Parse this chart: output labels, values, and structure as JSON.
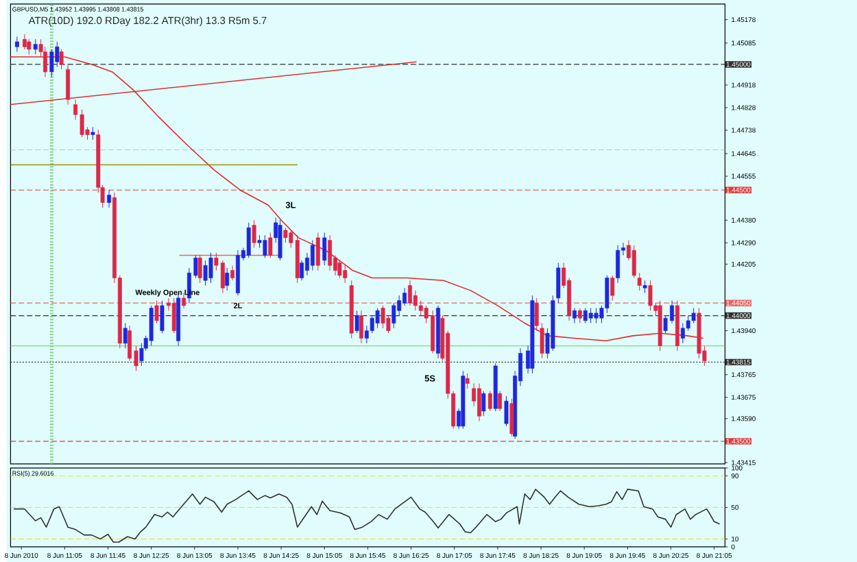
{
  "chart_data": [
    {
      "type": "candlestick",
      "title": "GBPUSD,M5 1.43952 1.43995 1.43808 1.43815",
      "subtitle": "ATR(10D) 192.0 RDay 182.2 ATR(3hr) 13.3 R5m 5.7",
      "xlim": [
        "2010-06-08T10:15",
        "2010-06-08T21:15"
      ],
      "ylim": [
        1.4341,
        1.4524
      ],
      "tick_labels": "y",
      "yticks": [
        1.45178,
        1.45085,
        1.44918,
        1.44828,
        1.44738,
        1.44645,
        1.44555,
        {
          "value": 1.4438,
          "label": "1.44380"
        },
        {
          "value": 1.4429,
          "label": "1.44290"
        },
        1.44205,
        {
          "value": 1.4394,
          "label": "1.43940"
        },
        1.43765,
        1.43675,
        {
          "value": 1.4359,
          "label": "1.43590"
        },
        1.43415
      ],
      "series": [
        {
          "type": "line",
          "color": "#e62828",
          "x": [
            "2010-06-08T10:15",
            "2010-06-08T11:05",
            "2010-06-08T11:30",
            "2010-06-08T11:49",
            "2010-06-08T12:08",
            "2010-06-08T12:32",
            "2010-06-08T12:58",
            "2010-06-08T13:23",
            "2010-06-08T13:47",
            "2010-06-08T14:13",
            "2010-06-08T14:25",
            "2010-06-08T14:41",
            "2010-06-08T15:06",
            "2010-06-08T15:31",
            "2010-06-08T15:49",
            "2010-06-08T16:21",
            "2010-06-08T16:55",
            "2010-06-08T17:20",
            "2010-06-08T17:45",
            "2010-06-08T18:10",
            "2010-06-08T18:31",
            "2010-06-08T18:56",
            "2010-06-08T19:25",
            "2010-06-08T19:50",
            "2010-06-08T20:15",
            "2010-06-08T20:40",
            "2010-06-08T20:55"
          ],
          "values": [
            1.4503,
            1.4503,
            1.45,
            1.4497,
            1.449,
            1.4479,
            1.4468,
            1.4458,
            1.445,
            1.4444,
            1.4438,
            1.4431,
            1.4426,
            1.4418,
            1.4415,
            1.4415,
            1.4414,
            1.441,
            1.4404,
            1.4397,
            1.4392,
            1.4391,
            1.439,
            1.4392,
            1.4393,
            1.4392,
            1.4391
          ]
        },
        {
          "type": "line",
          "color": "#e03030",
          "x": [
            "2010-06-08T10:15",
            "2010-06-08T16:30"
          ],
          "values": [
            1.4484,
            1.4501
          ]
        },
        {
          "type": "line",
          "color": "#a09000",
          "x": [
            "2010-06-08T10:15",
            "2010-06-08T14:40"
          ],
          "values": [
            1.446,
            1.446
          ]
        },
        {
          "type": "line",
          "color": "#f06060",
          "x": [
            "2010-06-08T12:51",
            "2010-06-08T14:25"
          ],
          "values": [
            1.4424,
            1.4424
          ]
        },
        {
          "color": "#1e28dc",
          "x": [
            "2010-06-08T10:21",
            "2010-06-08T10:38",
            "2010-06-08T10:53",
            "2010-06-08T10:58",
            "2010-06-08T11:31",
            "2010-06-08T11:46",
            "2010-06-08T12:01",
            "2010-06-08T12:16",
            "2010-06-08T12:20",
            "2010-06-08T12:25",
            "2010-06-08T12:35",
            "2010-06-08T12:50",
            "2010-06-08T13:00",
            "2010-06-08T13:06",
            "2010-06-08T13:15",
            "2010-06-08T13:20",
            "2010-06-08T13:35",
            "2010-06-08T13:45",
            "2010-06-08T13:50",
            "2010-06-08T13:55",
            "2010-06-08T14:05",
            "2010-06-08T14:10",
            "2010-06-08T14:20",
            "2010-06-08T14:24",
            "2010-06-08T14:44",
            "2010-06-08T14:49",
            "2010-06-08T14:54",
            "2010-06-08T15:05",
            "2010-06-08T15:35",
            "2010-06-08T15:44",
            "2010-06-08T15:49",
            "2010-06-08T15:54",
            "2010-06-08T16:09",
            "2010-06-08T16:14",
            "2010-06-08T16:19",
            "2010-06-08T16:50",
            "2010-06-08T17:09",
            "2010-06-08T17:13",
            "2010-06-08T17:32",
            "2010-06-08T17:43",
            "2010-06-08T17:53",
            "2010-06-08T18:01",
            "2010-06-08T18:06",
            "2010-06-08T18:13",
            "2010-06-08T18:17",
            "2010-06-08T18:31",
            "2010-06-08T18:36",
            "2010-06-08T18:41",
            "2010-06-08T18:56",
            "2010-06-08T19:06",
            "2010-06-08T19:11",
            "2010-06-08T19:16",
            "2010-06-08T19:21",
            "2010-06-08T19:26",
            "2010-06-08T19:36",
            "2010-06-08T19:41",
            "2010-06-08T20:01",
            "2010-06-08T20:20",
            "2010-06-08T20:26",
            "2010-06-08T20:36",
            "2010-06-08T20:41",
            "2010-06-08T20:46"
          ],
          "ohlc": [
            [
              1.4507,
              1.4511,
              1.4505,
              1.4509
            ],
            [
              1.4506,
              1.451,
              1.4504,
              1.4508
            ],
            [
              1.4497,
              1.4506,
              1.4495,
              1.4505
            ],
            [
              1.4501,
              1.4509,
              1.4499,
              1.4507
            ],
            [
              1.4472,
              1.4475,
              1.447,
              1.4473
            ],
            [
              1.4445,
              1.445,
              1.4443,
              1.4448
            ],
            [
              1.4389,
              1.4397,
              1.4387,
              1.4395
            ],
            [
              1.4382,
              1.4389,
              1.438,
              1.4387
            ],
            [
              1.4387,
              1.4392,
              1.4386,
              1.4391
            ],
            [
              1.439,
              1.4404,
              1.4388,
              1.4403
            ],
            [
              1.4394,
              1.4406,
              1.4393,
              1.4404
            ],
            [
              1.439,
              1.4409,
              1.4388,
              1.4407
            ],
            [
              1.4407,
              1.4419,
              1.4405,
              1.4417
            ],
            [
              1.4416,
              1.4424,
              1.4415,
              1.4423
            ],
            [
              1.4414,
              1.4422,
              1.4412,
              1.442
            ],
            [
              1.4415,
              1.4425,
              1.4413,
              1.4423
            ],
            [
              1.4412,
              1.4419,
              1.441,
              1.4417
            ],
            [
              1.4409,
              1.4426,
              1.4408,
              1.4424
            ],
            [
              1.4423,
              1.4427,
              1.4422,
              1.4426
            ],
            [
              1.4424,
              1.4437,
              1.4423,
              1.4435
            ],
            [
              1.4429,
              1.4432,
              1.4427,
              1.443
            ],
            [
              1.4424,
              1.4432,
              1.4423,
              1.443
            ],
            [
              1.4431,
              1.4439,
              1.4429,
              1.4437
            ],
            [
              1.4423,
              1.4438,
              1.4422,
              1.4436
            ],
            [
              1.4415,
              1.4422,
              1.4414,
              1.4421
            ],
            [
              1.4418,
              1.4425,
              1.4416,
              1.4423
            ],
            [
              1.442,
              1.443,
              1.4418,
              1.4428
            ],
            [
              1.4422,
              1.4433,
              1.442,
              1.4431
            ],
            [
              1.4394,
              1.4402,
              1.4393,
              1.44
            ],
            [
              1.4391,
              1.4396,
              1.4389,
              1.4394
            ],
            [
              1.4394,
              1.44,
              1.4393,
              1.4399
            ],
            [
              1.4397,
              1.4403,
              1.4395,
              1.4402
            ],
            [
              1.4397,
              1.4405,
              1.4395,
              1.4404
            ],
            [
              1.4402,
              1.4408,
              1.44,
              1.4406
            ],
            [
              1.4405,
              1.4411,
              1.4404,
              1.4409
            ],
            [
              1.4385,
              1.4404,
              1.4383,
              1.4403
            ],
            [
              1.4356,
              1.4363,
              1.4355,
              1.4362
            ],
            [
              1.4356,
              1.4378,
              1.4355,
              1.4376
            ],
            [
              1.4362,
              1.437,
              1.436,
              1.4369
            ],
            [
              1.4363,
              1.4381,
              1.4362,
              1.438
            ],
            [
              1.4357,
              1.4368,
              1.4356,
              1.4366
            ],
            [
              1.4352,
              1.4378,
              1.4351,
              1.4376
            ],
            [
              1.4374,
              1.4387,
              1.4372,
              1.4385
            ],
            [
              1.4379,
              1.4388,
              1.4377,
              1.4386
            ],
            [
              1.4379,
              1.4408,
              1.4377,
              1.4406
            ],
            [
              1.4385,
              1.4395,
              1.4383,
              1.4393
            ],
            [
              1.4387,
              1.4408,
              1.4386,
              1.4406
            ],
            [
              1.4407,
              1.4421,
              1.4405,
              1.4419
            ],
            [
              1.4399,
              1.4403,
              1.4397,
              1.4402
            ],
            [
              1.4398,
              1.4403,
              1.4397,
              1.4402
            ],
            [
              1.4399,
              1.4403,
              1.4397,
              1.4401
            ],
            [
              1.4399,
              1.4403,
              1.4397,
              1.4401
            ],
            [
              1.4399,
              1.4404,
              1.4397,
              1.4403
            ],
            [
              1.4403,
              1.4416,
              1.4401,
              1.4415
            ],
            [
              1.4415,
              1.4428,
              1.4413,
              1.4426
            ],
            [
              1.4426,
              1.4429,
              1.4424,
              1.4427
            ],
            [
              1.4411,
              1.4414,
              1.4409,
              1.4412
            ],
            [
              1.4394,
              1.44,
              1.4393,
              1.4399
            ],
            [
              1.4398,
              1.4406,
              1.4397,
              1.4404
            ],
            [
              1.4391,
              1.4397,
              1.4389,
              1.4395
            ],
            [
              1.4395,
              1.44,
              1.4394,
              1.4398
            ],
            [
              1.4398,
              1.4403,
              1.4397,
              1.4401
            ]
          ]
        },
        {
          "color": "#dc2848",
          "x": [
            "2010-06-08T10:28",
            "2010-06-08T10:32",
            "2010-06-08T10:43",
            "2010-06-08T10:47",
            "2010-06-08T11:02",
            "2010-06-08T11:08",
            "2010-06-08T11:15",
            "2010-06-08T11:21",
            "2010-06-08T11:26",
            "2010-06-08T11:36",
            "2010-06-08T11:40",
            "2010-06-08T11:51",
            "2010-06-08T11:56",
            "2010-06-08T12:05",
            "2010-06-08T12:11",
            "2010-06-08T12:30",
            "2010-06-08T12:41",
            "2010-06-08T12:46",
            "2010-06-08T12:55",
            "2010-06-08T13:10",
            "2010-06-08T13:25",
            "2010-06-08T13:31",
            "2010-06-08T13:40",
            "2010-06-08T14:00",
            "2010-06-08T14:15",
            "2010-06-08T14:29",
            "2010-06-08T14:34",
            "2010-06-08T14:40",
            "2010-06-08T14:59",
            "2010-06-08T15:10",
            "2010-06-08T15:15",
            "2010-06-08T15:19",
            "2010-06-08T15:24",
            "2010-06-08T15:30",
            "2010-06-08T15:39",
            "2010-06-08T15:59",
            "2010-06-08T16:04",
            "2010-06-08T16:24",
            "2010-06-08T16:29",
            "2010-06-08T16:34",
            "2010-06-08T16:39",
            "2010-06-08T16:45",
            "2010-06-08T16:54",
            "2010-06-08T16:59",
            "2010-06-08T17:04",
            "2010-06-08T17:17",
            "2010-06-08T17:23",
            "2010-06-08T17:28",
            "2010-06-08T17:38",
            "2010-06-08T17:47",
            "2010-06-08T17:58",
            "2010-06-08T18:21",
            "2010-06-08T18:26",
            "2010-06-08T18:46",
            "2010-06-08T18:51",
            "2010-06-08T19:01",
            "2010-06-08T19:31",
            "2010-06-08T19:46",
            "2010-06-08T19:51",
            "2010-06-08T19:56",
            "2010-06-08T20:06",
            "2010-06-08T20:11",
            "2010-06-08T20:15",
            "2010-06-08T20:31",
            "2010-06-08T20:51",
            "2010-06-08T20:56"
          ],
          "ohlc": [
            [
              1.451,
              1.4512,
              1.4506,
              1.4507
            ],
            [
              1.4509,
              1.451,
              1.4504,
              1.4506
            ],
            [
              1.4508,
              1.451,
              1.4503,
              1.4505
            ],
            [
              1.4505,
              1.4507,
              1.4495,
              1.4497
            ],
            [
              1.4505,
              1.4506,
              1.4498,
              1.45
            ],
            [
              1.4498,
              1.45,
              1.4484,
              1.4486
            ],
            [
              1.4484,
              1.4486,
              1.4478,
              1.448
            ],
            [
              1.448,
              1.4482,
              1.4471,
              1.4472
            ],
            [
              1.4474,
              1.4475,
              1.447,
              1.4472
            ],
            [
              1.4472,
              1.4474,
              1.4449,
              1.4451
            ],
            [
              1.4451,
              1.4452,
              1.4443,
              1.4445
            ],
            [
              1.4447,
              1.4449,
              1.4413,
              1.4415
            ],
            [
              1.4415,
              1.4416,
              1.4387,
              1.4389
            ],
            [
              1.4394,
              1.4396,
              1.4382,
              1.4383
            ],
            [
              1.4386,
              1.4388,
              1.4378,
              1.438
            ],
            [
              1.4404,
              1.4406,
              1.4397,
              1.4398
            ],
            [
              1.4405,
              1.4407,
              1.4402,
              1.4404
            ],
            [
              1.4405,
              1.4407,
              1.4393,
              1.4394
            ],
            [
              1.4407,
              1.4409,
              1.4403,
              1.4404
            ],
            [
              1.4423,
              1.4424,
              1.4413,
              1.4415
            ],
            [
              1.4423,
              1.4425,
              1.4418,
              1.442
            ],
            [
              1.4421,
              1.4422,
              1.4409,
              1.4411
            ],
            [
              1.4418,
              1.442,
              1.4414,
              1.4415
            ],
            [
              1.4436,
              1.4438,
              1.4427,
              1.4429
            ],
            [
              1.4431,
              1.4433,
              1.4423,
              1.4424
            ],
            [
              1.4434,
              1.4435,
              1.4429,
              1.4431
            ],
            [
              1.4433,
              1.4434,
              1.4427,
              1.4429
            ],
            [
              1.443,
              1.4432,
              1.4413,
              1.4415
            ],
            [
              1.4431,
              1.4433,
              1.4418,
              1.442
            ],
            [
              1.443,
              1.4432,
              1.4418,
              1.442
            ],
            [
              1.4423,
              1.4424,
              1.4416,
              1.4418
            ],
            [
              1.4421,
              1.4422,
              1.4415,
              1.4416
            ],
            [
              1.4418,
              1.442,
              1.4413,
              1.4415
            ],
            [
              1.4412,
              1.4414,
              1.4391,
              1.4393
            ],
            [
              1.44,
              1.4402,
              1.4389,
              1.4391
            ],
            [
              1.4403,
              1.4404,
              1.4395,
              1.4397
            ],
            [
              1.4399,
              1.44,
              1.4393,
              1.4394
            ],
            [
              1.4412,
              1.4414,
              1.4404,
              1.4405
            ],
            [
              1.4408,
              1.441,
              1.4402,
              1.4404
            ],
            [
              1.4404,
              1.4406,
              1.44,
              1.4402
            ],
            [
              1.4403,
              1.4404,
              1.4397,
              1.4399
            ],
            [
              1.44,
              1.4402,
              1.4385,
              1.4386
            ],
            [
              1.4399,
              1.44,
              1.4382,
              1.4383
            ],
            [
              1.4393,
              1.4394,
              1.4367,
              1.4369
            ],
            [
              1.4369,
              1.437,
              1.4355,
              1.4356
            ],
            [
              1.4375,
              1.4377,
              1.4371,
              1.4373
            ],
            [
              1.4371,
              1.4373,
              1.4364,
              1.4366
            ],
            [
              1.4371,
              1.4373,
              1.4358,
              1.436
            ],
            [
              1.4369,
              1.437,
              1.4362,
              1.4363
            ],
            [
              1.4369,
              1.437,
              1.4362,
              1.4363
            ],
            [
              1.4365,
              1.4367,
              1.4352,
              1.4353
            ],
            [
              1.4405,
              1.4407,
              1.4394,
              1.4396
            ],
            [
              1.4395,
              1.4397,
              1.4383,
              1.4385
            ],
            [
              1.4419,
              1.4421,
              1.4411,
              1.4412
            ],
            [
              1.4414,
              1.4415,
              1.4398,
              1.44
            ],
            [
              1.4402,
              1.4403,
              1.4397,
              1.4399
            ],
            [
              1.4415,
              1.4416,
              1.4406,
              1.4408
            ],
            [
              1.4428,
              1.443,
              1.4422,
              1.4423
            ],
            [
              1.4426,
              1.4428,
              1.4415,
              1.4416
            ],
            [
              1.4415,
              1.4417,
              1.441,
              1.4412
            ],
            [
              1.4412,
              1.4414,
              1.4402,
              1.4404
            ],
            [
              1.4404,
              1.4405,
              1.44,
              1.4402
            ],
            [
              1.4404,
              1.4406,
              1.4386,
              1.4388
            ],
            [
              1.4404,
              1.4406,
              1.4386,
              1.4388
            ],
            [
              1.4401,
              1.4403,
              1.4383,
              1.4385
            ],
            [
              1.4386,
              1.4388,
              1.438,
              1.4382
            ]
          ]
        }
      ],
      "ref_lines": [
        {
          "axis": "y",
          "value": 1.45,
          "label": "1.45000",
          "color": "#303030",
          "line_style": "dashed"
        },
        {
          "axis": "y",
          "value": 1.4466,
          "color": "#b4d2dc",
          "line_style": "dashed"
        },
        {
          "axis": "y",
          "value": 1.445,
          "label": "1.44500",
          "color": "#e03c3c",
          "line_style": "dashed"
        },
        {
          "axis": "y",
          "value": 1.4405,
          "label": "1.44050",
          "color": "#e86464",
          "line_style": "dashed"
        },
        {
          "axis": "y",
          "value": 1.44,
          "label": "1.44000",
          "color": "#303030",
          "line_style": "dashed"
        },
        {
          "axis": "y",
          "value": 1.4388,
          "color": "#78dc78",
          "line_style": "solid"
        },
        {
          "axis": "y",
          "value": 1.43815,
          "label": "1.43815",
          "color": "#303030",
          "line_style": "dotted"
        },
        {
          "axis": "y",
          "value": 1.435,
          "label": "1.43500",
          "color": "#e03c3c",
          "line_style": "dashed"
        },
        {
          "axis": "x",
          "value": "2010-06-08T10:53",
          "color": "#8cd08c",
          "line_style": "dotted"
        }
      ],
      "annotations": [
        "3L",
        {
          "text": "2L",
          "x": "2010-06-08T13:45",
          "y": 1.4404
        },
        "5S",
        {
          "text": "Weekly Open Line",
          "x": "2010-06-08T12:40",
          "y": 1.4409
        }
      ]
    },
    {
      "type": "line",
      "title": "RSI(5) 29.6016",
      "color": "#303030",
      "xlim": [
        "2010-06-08T10:15",
        "2010-06-08T21:15"
      ],
      "ylim": [
        0,
        100
      ],
      "yticks": [
        0,
        10,
        50,
        90,
        100
      ],
      "xticks": [
        {
          "value": "2010-06-08T10:25",
          "label": "8 Jun 2010"
        },
        {
          "value": "2010-06-08T11:05",
          "label": "8 Jun 11:05"
        },
        {
          "value": "2010-06-08T11:45",
          "label": "8 Jun 11:45"
        },
        {
          "value": "2010-06-08T12:25",
          "label": "8 Jun 12:25"
        },
        {
          "value": "2010-06-08T13:05",
          "label": "8 Jun 13:05"
        },
        {
          "value": "2010-06-08T13:45",
          "label": "8 Jun 13:45"
        },
        {
          "value": "2010-06-08T14:25",
          "label": "8 Jun 14:25"
        },
        {
          "value": "2010-06-08T15:05",
          "label": "8 Jun 15:05"
        },
        {
          "value": "2010-06-08T15:45",
          "label": "8 Jun 15:45"
        },
        {
          "value": "2010-06-08T16:25",
          "label": "8 Jun 16:25"
        },
        {
          "value": "2010-06-08T17:05",
          "label": "8 Jun 17:05"
        },
        {
          "value": "2010-06-08T17:45",
          "label": "8 Jun 17:45"
        },
        {
          "value": "2010-06-08T18:25",
          "label": "8 Jun 18:25"
        },
        {
          "value": "2010-06-08T19:05",
          "label": "8 Jun 19:05"
        },
        {
          "value": "2010-06-08T19:45",
          "label": "8 Jun 19:45"
        },
        {
          "value": "2010-06-08T20:25",
          "label": "8 Jun 20:25"
        },
        {
          "value": "2010-06-08T21:05",
          "label": "8 Jun 21:05"
        }
      ],
      "x": [
        "2010-06-08T10:18",
        "2010-06-08T10:28",
        "2010-06-08T10:38",
        "2010-06-08T10:43",
        "2010-06-08T10:48",
        "2010-06-08T10:55",
        "2010-06-08T11:00",
        "2010-06-08T11:08",
        "2010-06-08T11:15",
        "2010-06-08T11:23",
        "2010-06-08T11:30",
        "2010-06-08T11:38",
        "2010-06-08T11:45",
        "2010-06-08T11:50",
        "2010-06-08T11:55",
        "2010-06-08T12:03",
        "2010-06-08T12:10",
        "2010-06-08T12:15",
        "2010-06-08T12:20",
        "2010-06-08T12:28",
        "2010-06-08T12:35",
        "2010-06-08T12:40",
        "2010-06-08T12:45",
        "2010-06-08T12:53",
        "2010-06-08T13:03",
        "2010-06-08T13:10",
        "2010-06-08T13:15",
        "2010-06-08T13:23",
        "2010-06-08T13:30",
        "2010-06-08T13:35",
        "2010-06-08T13:43",
        "2010-06-08T13:55",
        "2010-06-08T14:03",
        "2010-06-08T14:10",
        "2010-06-08T14:15",
        "2010-06-08T14:23",
        "2010-06-08T14:30",
        "2010-06-08T14:35",
        "2010-06-08T14:40",
        "2010-06-08T14:48",
        "2010-06-08T14:53",
        "2010-06-08T14:58",
        "2010-06-08T15:03",
        "2010-06-08T15:10",
        "2010-06-08T15:20",
        "2010-06-08T15:28",
        "2010-06-08T15:33",
        "2010-06-08T15:40",
        "2010-06-08T15:48",
        "2010-06-08T15:55",
        "2010-06-08T16:03",
        "2010-06-08T16:10",
        "2010-06-08T16:25",
        "2010-06-08T16:33",
        "2010-06-08T16:38",
        "2010-06-08T16:45",
        "2010-06-08T16:50",
        "2010-06-08T17:00",
        "2010-06-08T17:10",
        "2010-06-08T17:15",
        "2010-06-08T17:20",
        "2010-06-08T17:25",
        "2010-06-08T17:35",
        "2010-06-08T17:43",
        "2010-06-08T17:48",
        "2010-06-08T17:53",
        "2010-06-08T18:03",
        "2010-06-08T18:05",
        "2010-06-08T18:10",
        "2010-06-08T18:15",
        "2010-06-08T18:20",
        "2010-06-08T18:28",
        "2010-06-08T18:33",
        "2010-06-08T18:38",
        "2010-06-08T18:43",
        "2010-06-08T18:50",
        "2010-06-08T19:00",
        "2010-06-08T19:10",
        "2010-06-08T19:18",
        "2010-06-08T19:25",
        "2010-06-08T19:30",
        "2010-06-08T19:35",
        "2010-06-08T19:40",
        "2010-06-08T19:45",
        "2010-06-08T19:55",
        "2010-06-08T20:00",
        "2010-06-08T20:08",
        "2010-06-08T20:13",
        "2010-06-08T20:20",
        "2010-06-08T20:25",
        "2010-06-08T20:30",
        "2010-06-08T20:38",
        "2010-06-08T20:43",
        "2010-06-08T20:48",
        "2010-06-08T20:58",
        "2010-06-08T21:00",
        "2010-06-08T21:05",
        "2010-06-08T21:10"
      ],
      "values": [
        48,
        48,
        33,
        37,
        25,
        48,
        51,
        25,
        22,
        15,
        15,
        10,
        16,
        6,
        6,
        13,
        10,
        19,
        25,
        41,
        38,
        44,
        38,
        51,
        67,
        54,
        63,
        57,
        44,
        54,
        60,
        71,
        60,
        65,
        62,
        67,
        63,
        54,
        25,
        41,
        51,
        41,
        58,
        46,
        43,
        38,
        22,
        25,
        32,
        41,
        35,
        48,
        63,
        48,
        44,
        33,
        24,
        41,
        29,
        19,
        18,
        25,
        41,
        32,
        35,
        43,
        51,
        29,
        67,
        60,
        73,
        63,
        54,
        63,
        71,
        63,
        54,
        51,
        52,
        54,
        57,
        70,
        60,
        73,
        71,
        51,
        48,
        38,
        35,
        25,
        41,
        48,
        35,
        41,
        48,
        44,
        32,
        29
      ],
      "ref_lines": [
        {
          "axis": "y",
          "value": 90,
          "color": "#f0e040",
          "line_style": "dashed"
        },
        {
          "axis": "y",
          "value": 50,
          "color": "#f0e040",
          "line_style": "dashed"
        },
        {
          "axis": "y",
          "value": 10,
          "color": "#f0e040",
          "line_style": "dashed"
        }
      ]
    }
  ]
}
